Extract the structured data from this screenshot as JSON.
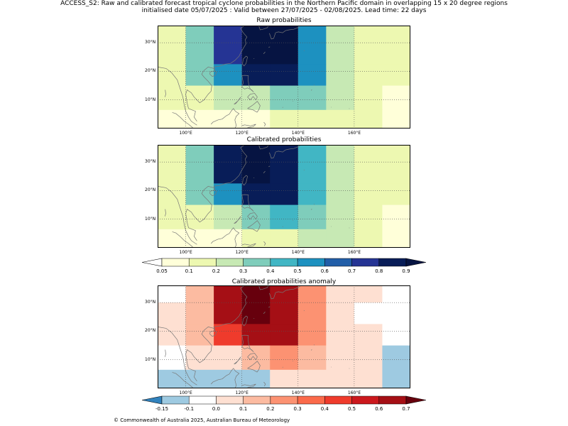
{
  "header": {
    "line1": "ACCESS_S2: Raw and calibrated forecast tropical cyclone probabilities in the Northern Pacific domain in overlapping 15 x 20 degree regions",
    "line2": "initialised date 05/07/2025 :  Valid between 27/07/2025 - 02/08/2025. Lead time: 22 days"
  },
  "map": {
    "lon_range": [
      90,
      180
    ],
    "lat_range": [
      0,
      36
    ],
    "lon_ticks": [
      "100°E",
      "120°E",
      "140°E",
      "160°E"
    ],
    "lat_ticks": [
      "30°N",
      "20°N",
      "10°N"
    ],
    "cell_lon": [
      90,
      100,
      110,
      120,
      130,
      140,
      150,
      160,
      170,
      180
    ],
    "cell_lat": [
      36,
      30,
      22.5,
      15,
      6.5,
      0
    ]
  },
  "chart_data": [
    {
      "type": "heatmap",
      "title": "Raw probabilities",
      "values": [
        [
          0.1,
          0.3,
          0.7,
          0.9,
          0.9,
          0.5,
          0.2,
          0.15,
          0.15
        ],
        [
          0.15,
          0.3,
          0.7,
          0.9,
          0.9,
          0.5,
          0.2,
          0.15,
          0.15
        ],
        [
          0.15,
          0.3,
          0.5,
          0.8,
          0.8,
          0.5,
          0.2,
          0.15,
          0.1
        ],
        [
          0.15,
          0.15,
          0.2,
          0.2,
          0.3,
          0.3,
          0.2,
          0.15,
          0.05
        ],
        [
          0.05,
          0.05,
          0.05,
          0.05,
          0.15,
          0.15,
          0.15,
          0.1,
          0.05
        ]
      ]
    },
    {
      "type": "heatmap",
      "title": "Calibrated probabilities",
      "values": [
        [
          0.1,
          0.3,
          0.8,
          0.9,
          0.8,
          0.4,
          0.2,
          0.15,
          0.1
        ],
        [
          0.1,
          0.3,
          0.8,
          0.9,
          0.8,
          0.4,
          0.2,
          0.1,
          0.1
        ],
        [
          0.1,
          0.3,
          0.5,
          0.8,
          0.8,
          0.4,
          0.2,
          0.15,
          0.1
        ],
        [
          0.1,
          0.1,
          0.2,
          0.3,
          0.4,
          0.3,
          0.2,
          0.15,
          0.05
        ],
        [
          0.05,
          0.05,
          0.05,
          0.1,
          0.15,
          0.2,
          0.2,
          0.15,
          0.05
        ]
      ]
    },
    {
      "type": "heatmap",
      "title": "Calibrated probabilities anomaly",
      "values": [
        [
          -0.1,
          0.1,
          0.6,
          0.7,
          0.6,
          0.2,
          0.05,
          0.0,
          -0.1
        ],
        [
          0.0,
          0.1,
          0.6,
          0.7,
          0.6,
          0.2,
          0.05,
          -0.1,
          -0.1
        ],
        [
          0.0,
          0.1,
          0.4,
          0.6,
          0.6,
          0.2,
          0.05,
          0.0,
          -0.1
        ],
        [
          -0.1,
          0.0,
          0.05,
          0.1,
          0.2,
          0.1,
          0.05,
          0.0,
          -0.15
        ],
        [
          -0.15,
          -0.15,
          -0.15,
          -0.15,
          0.0,
          0.05,
          0.05,
          0.0,
          -0.15
        ]
      ]
    }
  ],
  "colorbar_prob": {
    "ticks": [
      "0.05",
      "0.1",
      "0.2",
      "0.3",
      "0.4",
      "0.5",
      "0.6",
      "0.7",
      "0.8",
      "0.9"
    ],
    "bounds": [
      0.05,
      0.1,
      0.2,
      0.3,
      0.4,
      0.5,
      0.6,
      0.7,
      0.8,
      0.9
    ],
    "colors": [
      "#ffffd9",
      "#edf8b1",
      "#c7e9b4",
      "#7fcdbb",
      "#41b6c4",
      "#1d91c0",
      "#225ea8",
      "#253494",
      "#081d58"
    ],
    "under_color": "#ffffff",
    "over_color": "#061442"
  },
  "colorbar_anom": {
    "ticks": [
      "-0.15",
      "-0.1",
      "0.0",
      "0.1",
      "0.2",
      "0.3",
      "0.4",
      "0.5",
      "0.6",
      "0.7"
    ],
    "bounds": [
      -0.15,
      -0.1,
      0.0,
      0.1,
      0.2,
      0.3,
      0.4,
      0.5,
      0.6,
      0.7
    ],
    "colors": [
      "#9ecae1",
      "#ffffff",
      "#fee0d2",
      "#fcbba1",
      "#fc9272",
      "#fb6a4a",
      "#ef3b2c",
      "#cb181d",
      "#a50f15"
    ],
    "under_color": "#3182bd",
    "over_color": "#67000d"
  },
  "footer": {
    "copyright": "© Commonwealth of Australia 2025, Australian Bureau of Meteorology"
  }
}
